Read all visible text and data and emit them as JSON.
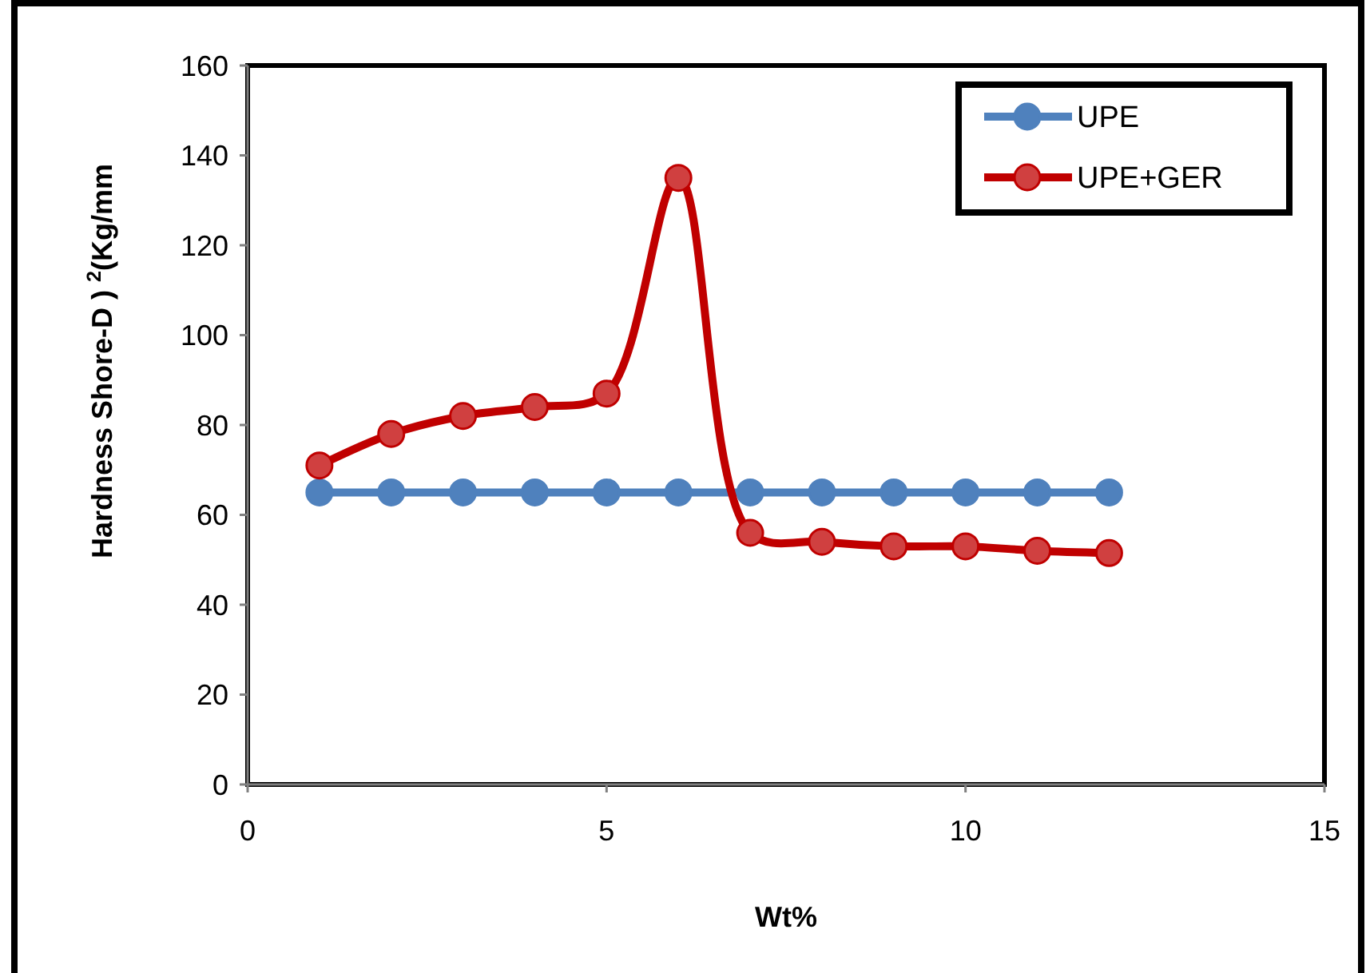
{
  "chart_data": {
    "type": "line",
    "xlabel": "Wt%",
    "ylabel": "Hardness Shore-D ) $^{2}$(Kg/mm",
    "x": [
      1,
      2,
      3,
      4,
      5,
      6,
      7,
      8,
      9,
      10,
      11,
      12
    ],
    "series": [
      {
        "name": "UPE",
        "color": "#4f81bd",
        "values": [
          65,
          65,
          65,
          65,
          65,
          65,
          65,
          65,
          65,
          65,
          65,
          65
        ]
      },
      {
        "name": "UPE+GER",
        "color": "#c00000",
        "values": [
          71,
          78,
          82,
          84,
          87,
          135,
          56,
          54,
          53,
          53,
          52,
          51.5
        ]
      }
    ],
    "xlim": [
      0,
      15
    ],
    "xticks": [
      0,
      5,
      10,
      15
    ],
    "ylim": [
      0,
      160
    ],
    "yticks": [
      0,
      20,
      40,
      60,
      80,
      100,
      120,
      140,
      160
    ],
    "grid": false,
    "legend": "top right",
    "marker": "circle"
  }
}
